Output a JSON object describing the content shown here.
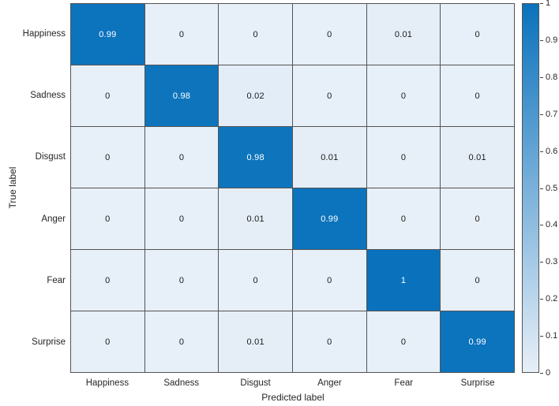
{
  "chart_data": {
    "type": "heatmap",
    "subtype": "confusion-matrix",
    "title": "",
    "xlabel": "Predicted label",
    "ylabel": "True label",
    "categories": [
      "Happiness",
      "Sadness",
      "Disgust",
      "Anger",
      "Fear",
      "Surprise"
    ],
    "rows_axis": "True label",
    "cols_axis": "Predicted label",
    "matrix": [
      [
        0.99,
        0,
        0,
        0,
        0.01,
        0
      ],
      [
        0,
        0.98,
        0.02,
        0,
        0,
        0
      ],
      [
        0,
        0,
        0.98,
        0.01,
        0,
        0.01
      ],
      [
        0,
        0,
        0.01,
        0.99,
        0,
        0
      ],
      [
        0,
        0,
        0,
        0,
        1,
        0
      ],
      [
        0,
        0,
        0.01,
        0,
        0,
        0.99
      ]
    ],
    "colorbar": {
      "min": 0,
      "max": 1,
      "tick_labels": [
        "1",
        "0.9",
        "0.8",
        "0.7",
        "0.6",
        "0.5",
        "0.4",
        "0.3",
        "0.2",
        "0.1",
        "0"
      ],
      "tick_values": [
        1,
        0.9,
        0.8,
        0.7,
        0.6,
        0.5,
        0.4,
        0.3,
        0.2,
        0.1,
        0
      ],
      "position": "right"
    },
    "colors": {
      "high": "#0a72bc",
      "low": "#e7eff8",
      "grid_line": "#545454",
      "text_dark": "#1a1a1a",
      "text_light": "#ffffff",
      "background": "#ffffff"
    },
    "grid": true,
    "legend": "none"
  }
}
